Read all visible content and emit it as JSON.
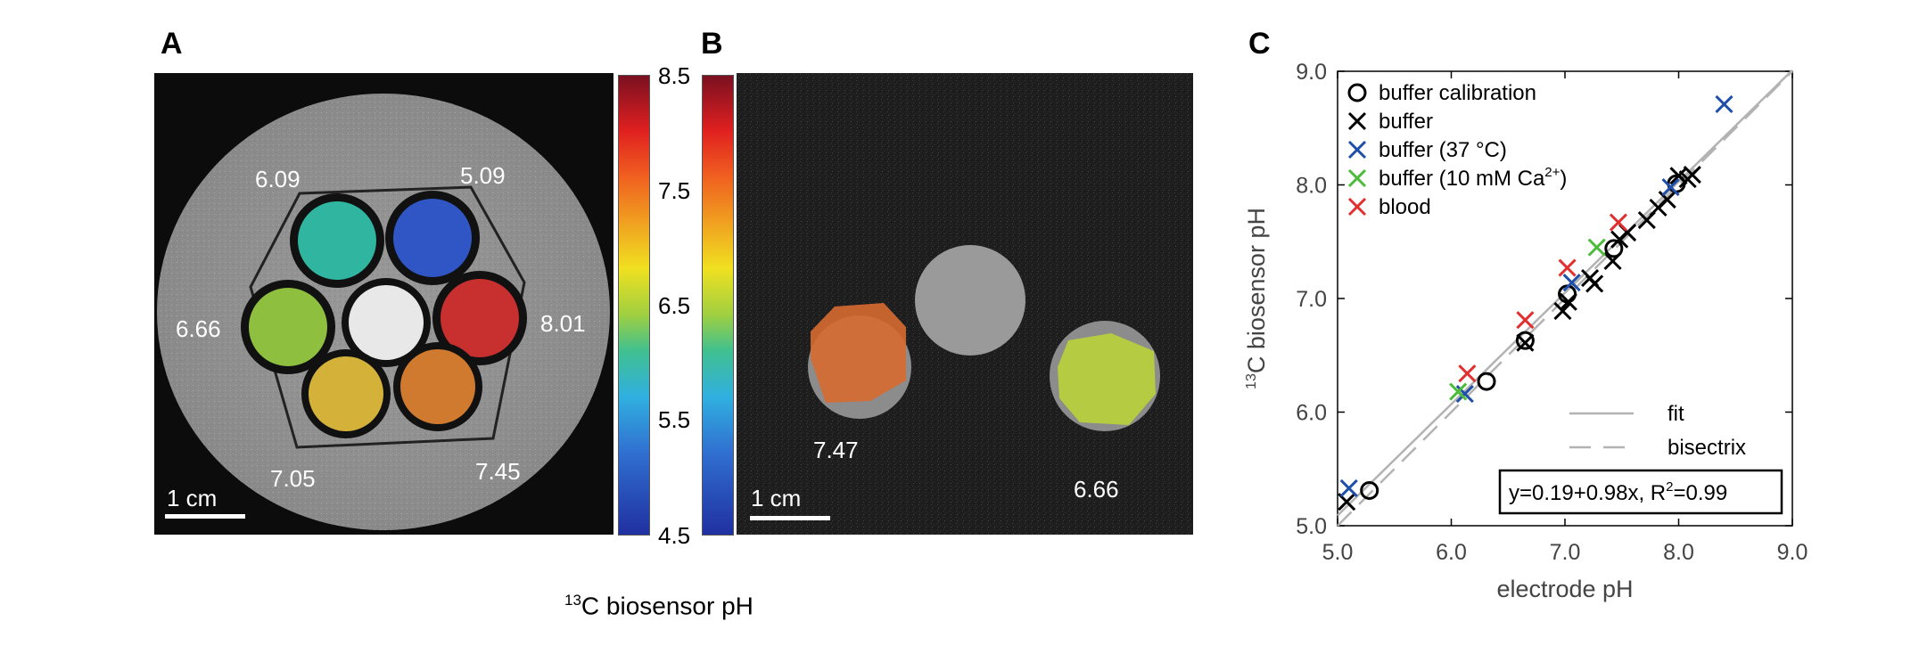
{
  "panels": {
    "a": "A",
    "b": "B",
    "c": "C"
  },
  "panel_a": {
    "labels": [
      "6.09",
      "5.09",
      "6.66",
      "8.01",
      "7.05",
      "7.45"
    ],
    "scale_bar": "1 cm"
  },
  "panel_b": {
    "labels": [
      "7.47",
      "6.66"
    ],
    "scale_bar": "1 cm"
  },
  "colorbar": {
    "ticks": [
      "8.5",
      "7.5",
      "6.5",
      "5.5",
      "4.5"
    ],
    "range": [
      4.5,
      8.5
    ],
    "label_sup": "13",
    "label_text": "C biosensor pH"
  },
  "colors": {
    "buffer_calibration": "#000000",
    "buffer": "#000000",
    "buffer_37": "#1f4fa8",
    "buffer_ca": "#4cbb3a",
    "blood": "#e03030",
    "fit": "#b3b3b3"
  },
  "chart_data": {
    "type": "scatter",
    "title": "",
    "xlabel": "electrode pH",
    "ylabel_sup": "13",
    "ylabel_text": "C biosensor pH",
    "xlim": [
      5.0,
      9.0
    ],
    "ylim": [
      5.0,
      9.0
    ],
    "xticks": [
      "5.0",
      "6.0",
      "7.0",
      "8.0",
      "9.0"
    ],
    "yticks": [
      "5.0",
      "6.0",
      "7.0",
      "8.0",
      "9.0"
    ],
    "legend": {
      "placement": "top-left",
      "entries": [
        {
          "name": "buffer calibration",
          "marker": "circle",
          "color": "#000000"
        },
        {
          "name": "buffer",
          "marker": "x",
          "color": "#000000"
        },
        {
          "name": "buffer (37 °C)",
          "marker": "x",
          "color": "#1f4fa8"
        },
        {
          "name": "buffer (10 mM Ca",
          "sup": "2+",
          "tail": ")",
          "marker": "x",
          "color": "#4cbb3a"
        },
        {
          "name": "blood",
          "marker": "x",
          "color": "#e03030"
        }
      ]
    },
    "lines_legend": [
      {
        "name": "fit",
        "style": "solid"
      },
      {
        "name": "bisectrix",
        "style": "dashed"
      }
    ],
    "fit": {
      "intercept": 0.19,
      "slope": 0.98,
      "label": "y=0.19+0.98x, R",
      "label_sup": "2",
      "label_tail": "=0.99"
    },
    "series": [
      {
        "name": "buffer calibration",
        "marker": "circle",
        "color": "#000000",
        "points": [
          [
            5.28,
            5.31
          ],
          [
            6.31,
            6.27
          ],
          [
            6.65,
            6.63
          ],
          [
            7.02,
            7.04
          ],
          [
            7.43,
            7.44
          ],
          [
            7.98,
            8.01
          ]
        ]
      },
      {
        "name": "buffer",
        "marker": "x",
        "color": "#000000",
        "points": [
          [
            5.08,
            5.21
          ],
          [
            6.65,
            6.61
          ],
          [
            6.98,
            6.89
          ],
          [
            7.03,
            6.97
          ],
          [
            7.22,
            7.18
          ],
          [
            7.26,
            7.13
          ],
          [
            7.42,
            7.33
          ],
          [
            7.48,
            7.52
          ],
          [
            7.55,
            7.58
          ],
          [
            7.72,
            7.69
          ],
          [
            7.82,
            7.8
          ],
          [
            7.9,
            7.87
          ],
          [
            8.0,
            8.08
          ],
          [
            8.08,
            8.05
          ],
          [
            8.12,
            8.09
          ]
        ]
      },
      {
        "name": "buffer (37 °C)",
        "marker": "x",
        "color": "#1f4fa8",
        "points": [
          [
            5.1,
            5.33
          ],
          [
            6.12,
            6.16
          ],
          [
            7.06,
            7.14
          ],
          [
            7.93,
            7.98
          ],
          [
            8.4,
            8.71
          ]
        ]
      },
      {
        "name": "buffer (10 mM Ca2+)",
        "marker": "x",
        "color": "#4cbb3a",
        "points": [
          [
            6.06,
            6.18
          ],
          [
            7.28,
            7.45
          ]
        ]
      },
      {
        "name": "blood",
        "marker": "x",
        "color": "#e03030",
        "points": [
          [
            6.14,
            6.34
          ],
          [
            6.65,
            6.81
          ],
          [
            7.02,
            7.27
          ],
          [
            7.47,
            7.67
          ]
        ]
      }
    ]
  }
}
